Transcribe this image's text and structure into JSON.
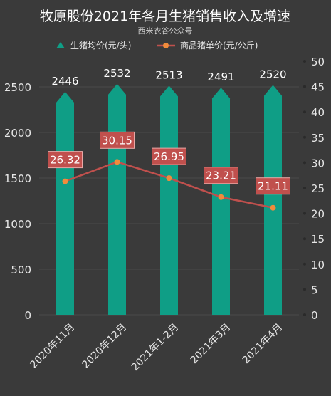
{
  "title": "牧原股份2021年各月生猪销售收入及增速",
  "subtitle": "西米衣谷公众号",
  "legend": {
    "bar_label": "生猪均价(元/头)",
    "line_label": "商品猪单价(元/公斤)"
  },
  "colors": {
    "background": "#3a3a3a",
    "bar": "#0f9e86",
    "line": "#c0504d",
    "label_box": "#c0504d",
    "text": "#ffffff",
    "axis_text": "#e6e6e6",
    "grid": "#4a4a4a"
  },
  "chart_data": {
    "type": "bar",
    "categories": [
      "2020年11月",
      "2020年12月",
      "2021年1-2月",
      "2021年3月",
      "2021年4月"
    ],
    "series": [
      {
        "name": "生猪均价(元/头)",
        "type": "bar",
        "axis": "left",
        "values": [
          2446,
          2532,
          2513,
          2491,
          2520
        ]
      },
      {
        "name": "商品猪单价(元/公斤)",
        "type": "line",
        "axis": "right",
        "values": [
          26.32,
          30.15,
          26.95,
          23.21,
          21.11
        ]
      }
    ],
    "y_left": {
      "ticks": [
        0,
        500,
        1000,
        1500,
        2000,
        2500
      ],
      "range": [
        0,
        2500
      ]
    },
    "y_right": {
      "ticks": [
        0,
        5,
        10,
        15,
        20,
        25,
        30,
        35,
        40,
        45,
        50
      ],
      "range": [
        0,
        50
      ]
    },
    "grid": true,
    "legend_position": "top"
  }
}
